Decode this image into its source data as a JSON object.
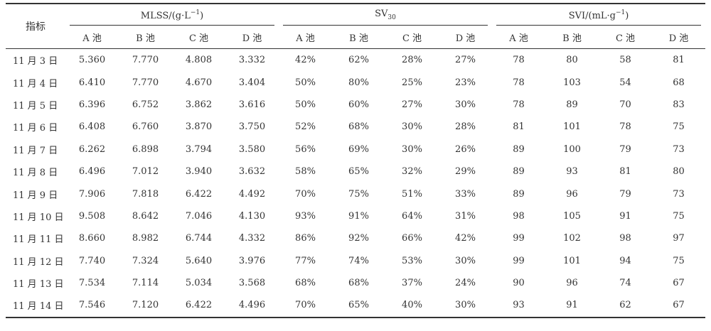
{
  "header": {
    "row_header": "指标",
    "groups": [
      {
        "pre": "MLSS/(g·L",
        "sup": "−1",
        "post": ")"
      },
      {
        "pre": "SV",
        "sub": "30"
      },
      {
        "pre": "SVI/(mL·g",
        "sup": "−1",
        "post": ")"
      }
    ],
    "pools": [
      "A 池",
      "B 池",
      "C 池",
      "D 池",
      "A 池",
      "B 池",
      "C 池",
      "D 池",
      "A 池",
      "B 池",
      "C 池",
      "D 池"
    ]
  },
  "rows": [
    [
      "11 月 3 日",
      "5.360",
      "7.770",
      "4.808",
      "3.332",
      "42%",
      "62%",
      "28%",
      "27%",
      "78",
      "80",
      "58",
      "81"
    ],
    [
      "11 月 4 日",
      "6.410",
      "7.770",
      "4.670",
      "3.404",
      "50%",
      "80%",
      "25%",
      "23%",
      "78",
      "103",
      "54",
      "68"
    ],
    [
      "11 月 5 日",
      "6.396",
      "6.752",
      "3.862",
      "3.616",
      "50%",
      "60%",
      "27%",
      "30%",
      "78",
      "89",
      "70",
      "83"
    ],
    [
      "11 月 6 日",
      "6.408",
      "6.760",
      "3.870",
      "3.750",
      "52%",
      "68%",
      "30%",
      "28%",
      "81",
      "101",
      "78",
      "75"
    ],
    [
      "11 月 7 日",
      "6.262",
      "6.898",
      "3.794",
      "3.580",
      "56%",
      "69%",
      "30%",
      "26%",
      "89",
      "100",
      "79",
      "73"
    ],
    [
      "11 月 8 日",
      "6.496",
      "7.012",
      "3.940",
      "3.632",
      "58%",
      "65%",
      "32%",
      "29%",
      "89",
      "93",
      "81",
      "80"
    ],
    [
      "11 月 9 日",
      "7.906",
      "7.818",
      "6.422",
      "4.492",
      "70%",
      "75%",
      "51%",
      "33%",
      "89",
      "96",
      "79",
      "73"
    ],
    [
      "11 月 10 日",
      "9.508",
      "8.642",
      "7.046",
      "4.130",
      "93%",
      "91%",
      "64%",
      "31%",
      "98",
      "105",
      "91",
      "75"
    ],
    [
      "11 月 11 日",
      "8.660",
      "8.982",
      "6.744",
      "4.332",
      "86%",
      "92%",
      "66%",
      "42%",
      "99",
      "102",
      "98",
      "97"
    ],
    [
      "11 月 12 日",
      "7.740",
      "7.324",
      "5.640",
      "3.976",
      "77%",
      "74%",
      "53%",
      "30%",
      "99",
      "101",
      "94",
      "75"
    ],
    [
      "11 月 13 日",
      "7.534",
      "7.114",
      "5.034",
      "3.568",
      "68%",
      "68%",
      "37%",
      "24%",
      "90",
      "96",
      "74",
      "67"
    ],
    [
      "11 月 14 日",
      "7.546",
      "7.120",
      "6.422",
      "4.496",
      "70%",
      "65%",
      "40%",
      "30%",
      "93",
      "91",
      "62",
      "67"
    ]
  ]
}
